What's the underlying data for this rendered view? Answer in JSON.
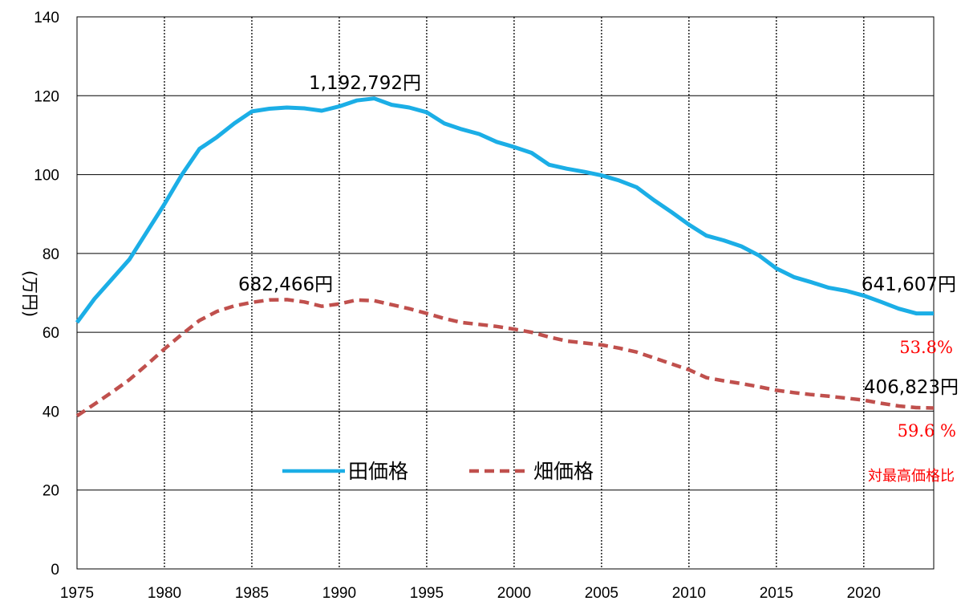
{
  "chart_data": {
    "type": "line",
    "xlim": [
      1975,
      2024
    ],
    "ylim": [
      0,
      140
    ],
    "x_ticks": [
      "1975",
      "1980",
      "1985",
      "1990",
      "1995",
      "2000",
      "2005",
      "2010",
      "2015",
      "2020"
    ],
    "y_ticks": [
      "0",
      "20",
      "40",
      "60",
      "80",
      "100",
      "120",
      "140"
    ],
    "ylabel": "(万円)",
    "grid": {
      "horizontal": true,
      "vertical_dotted": true
    },
    "legend_position": "lower-center",
    "series": [
      {
        "name": "田価格",
        "color": "#1BAEE6",
        "dash": "solid",
        "x": [
          1975,
          1976,
          1977,
          1978,
          1979,
          1980,
          1981,
          1982,
          1983,
          1984,
          1985,
          1986,
          1987,
          1988,
          1989,
          1990,
          1991,
          1992,
          1993,
          1994,
          1995,
          1996,
          1997,
          1998,
          1999,
          2000,
          2001,
          2002,
          2003,
          2004,
          2005,
          2006,
          2007,
          2008,
          2009,
          2010,
          2011,
          2012,
          2013,
          2014,
          2015,
          2016,
          2017,
          2018,
          2019,
          2020,
          2021,
          2022,
          2023,
          2024
        ],
        "y": [
          62.5,
          68.5,
          73.5,
          78.5,
          85.5,
          92.5,
          100.0,
          106.5,
          109.5,
          113.0,
          116.0,
          116.7,
          117.0,
          116.8,
          116.2,
          117.3,
          118.8,
          119.3,
          117.7,
          117.0,
          115.8,
          113.0,
          111.5,
          110.3,
          108.3,
          107.0,
          105.5,
          102.5,
          101.5,
          100.7,
          99.8,
          98.5,
          96.8,
          93.5,
          90.5,
          87.3,
          84.5,
          83.3,
          81.8,
          79.5,
          76.2,
          74.0,
          72.7,
          71.3,
          70.5,
          69.3,
          67.7,
          66.0,
          64.8,
          64.8
        ]
      },
      {
        "name": "畑価格",
        "color": "#C0504D",
        "dash": "dashed",
        "x": [
          1975,
          1976,
          1977,
          1978,
          1979,
          1980,
          1981,
          1982,
          1983,
          1984,
          1985,
          1986,
          1987,
          1988,
          1989,
          1990,
          1991,
          1992,
          1993,
          1994,
          1995,
          1996,
          1997,
          1998,
          1999,
          2000,
          2001,
          2002,
          2003,
          2004,
          2005,
          2006,
          2007,
          2008,
          2009,
          2010,
          2011,
          2012,
          2013,
          2014,
          2015,
          2016,
          2017,
          2018,
          2019,
          2020,
          2021,
          2022,
          2023,
          2024
        ],
        "y": [
          38.8,
          41.8,
          44.8,
          48.0,
          51.8,
          55.8,
          59.5,
          63.0,
          65.3,
          66.7,
          67.6,
          68.2,
          68.3,
          67.7,
          66.6,
          67.2,
          68.2,
          68.0,
          67.0,
          66.0,
          64.8,
          63.5,
          62.5,
          62.0,
          61.5,
          60.8,
          60.0,
          58.8,
          57.8,
          57.3,
          56.8,
          56.0,
          55.0,
          53.5,
          52.0,
          50.5,
          48.5,
          47.7,
          47.0,
          46.2,
          45.3,
          44.7,
          44.2,
          43.8,
          43.3,
          42.8,
          42.0,
          41.3,
          40.9,
          40.8
        ]
      }
    ],
    "annotations": {
      "rice_peak": "1,192,792円",
      "field_peak": "682,466円",
      "rice_latest": "641,607円",
      "field_latest": "406,823円",
      "rice_ratio": "53.8%",
      "field_ratio": "59.6 %",
      "ratio_label": "対最高価格比",
      "ratio_color": "#FF0000"
    }
  }
}
